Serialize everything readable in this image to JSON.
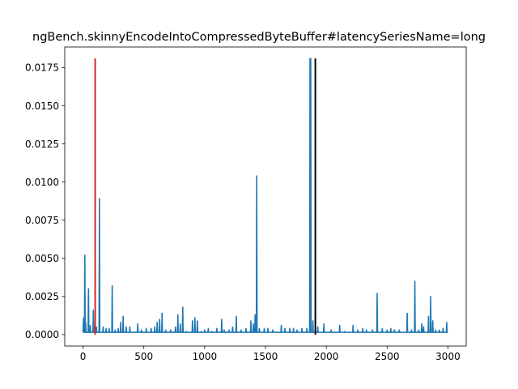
{
  "chart_data": {
    "type": "line",
    "title": "ngBench.skinnyEncodeIntoCompressedByteBuffer#latencySeriesName=long",
    "xlabel": "",
    "ylabel": "",
    "xlim": [
      -150,
      3150
    ],
    "ylim": [
      -0.00075,
      0.01885
    ],
    "xticks": [
      0,
      500,
      1000,
      1500,
      2000,
      2500,
      3000
    ],
    "xtick_labels": [
      "0",
      "500",
      "1000",
      "1500",
      "2000",
      "2500",
      "3000"
    ],
    "yticks": [
      0.0,
      0.0025,
      0.005,
      0.0075,
      0.01,
      0.0125,
      0.015,
      0.0175
    ],
    "ytick_labels": [
      "0.0000",
      "0.0025",
      "0.0050",
      "0.0075",
      "0.0100",
      "0.0125",
      "0.0150",
      "0.0175"
    ],
    "grid": false,
    "baseline": 0.00015,
    "series": [
      {
        "color": "#1f77b4",
        "spikes": [
          [
            5,
            0.0011
          ],
          [
            15,
            0.0052
          ],
          [
            22,
            0.0008
          ],
          [
            45,
            0.003
          ],
          [
            60,
            0.0006
          ],
          [
            85,
            0.0016
          ],
          [
            110,
            0.0005
          ],
          [
            135,
            0.0089
          ],
          [
            165,
            0.0005
          ],
          [
            190,
            0.0004
          ],
          [
            215,
            0.0004
          ],
          [
            240,
            0.0032
          ],
          [
            265,
            0.0003
          ],
          [
            290,
            0.0004
          ],
          [
            310,
            0.0008
          ],
          [
            330,
            0.0012
          ],
          [
            355,
            0.0005
          ],
          [
            385,
            0.0005
          ],
          [
            450,
            0.0007
          ],
          [
            480,
            0.0003
          ],
          [
            520,
            0.0004
          ],
          [
            560,
            0.0004
          ],
          [
            590,
            0.0005
          ],
          [
            610,
            0.0008
          ],
          [
            630,
            0.001
          ],
          [
            650,
            0.0014
          ],
          [
            680,
            0.0003
          ],
          [
            720,
            0.0003
          ],
          [
            760,
            0.0005
          ],
          [
            780,
            0.0013
          ],
          [
            800,
            0.0007
          ],
          [
            820,
            0.0018
          ],
          [
            850,
            0.0002
          ],
          [
            900,
            0.0009
          ],
          [
            920,
            0.0011
          ],
          [
            940,
            0.0009
          ],
          [
            970,
            0.0002
          ],
          [
            1000,
            0.0003
          ],
          [
            1030,
            0.0004
          ],
          [
            1060,
            0.0002
          ],
          [
            1100,
            0.0004
          ],
          [
            1140,
            0.001
          ],
          [
            1160,
            0.0003
          ],
          [
            1200,
            0.0003
          ],
          [
            1230,
            0.0005
          ],
          [
            1260,
            0.0012
          ],
          [
            1300,
            0.0003
          ],
          [
            1340,
            0.0004
          ],
          [
            1380,
            0.0009
          ],
          [
            1400,
            0.0007
          ],
          [
            1415,
            0.0013
          ],
          [
            1428,
            0.0104
          ],
          [
            1450,
            0.0004
          ],
          [
            1490,
            0.0004
          ],
          [
            1520,
            0.0004
          ],
          [
            1560,
            0.0003
          ],
          [
            1630,
            0.0006
          ],
          [
            1660,
            0.0004
          ],
          [
            1700,
            0.0004
          ],
          [
            1730,
            0.0004
          ],
          [
            1760,
            0.0003
          ],
          [
            1800,
            0.0004
          ],
          [
            1840,
            0.0004
          ],
          [
            1866,
            0.0181
          ],
          [
            1872,
            0.0181
          ],
          [
            1890,
            0.0009
          ],
          [
            1930,
            0.0005
          ],
          [
            1980,
            0.0007
          ],
          [
            2040,
            0.0003
          ],
          [
            2110,
            0.0006
          ],
          [
            2150,
            0.0002
          ],
          [
            2220,
            0.0006
          ],
          [
            2260,
            0.0003
          ],
          [
            2300,
            0.0004
          ],
          [
            2330,
            0.0003
          ],
          [
            2380,
            0.0003
          ],
          [
            2418,
            0.0027
          ],
          [
            2460,
            0.0004
          ],
          [
            2500,
            0.0003
          ],
          [
            2530,
            0.0004
          ],
          [
            2560,
            0.0003
          ],
          [
            2600,
            0.0003
          ],
          [
            2665,
            0.0014
          ],
          [
            2700,
            0.0003
          ],
          [
            2728,
            0.0035
          ],
          [
            2760,
            0.0003
          ],
          [
            2785,
            0.0007
          ],
          [
            2800,
            0.0005
          ],
          [
            2840,
            0.0012
          ],
          [
            2858,
            0.0025
          ],
          [
            2875,
            0.0009
          ],
          [
            2900,
            0.0003
          ],
          [
            2930,
            0.0003
          ],
          [
            2960,
            0.0004
          ],
          [
            2990,
            0.0008
          ]
        ]
      }
    ],
    "vertical_lines": [
      {
        "x": 100,
        "ymin": 0.0,
        "ymax": 0.0181,
        "color": "#d62728"
      },
      {
        "x": 1910,
        "ymin": 0.0,
        "ymax": 0.0181,
        "color": "#000000"
      }
    ]
  }
}
